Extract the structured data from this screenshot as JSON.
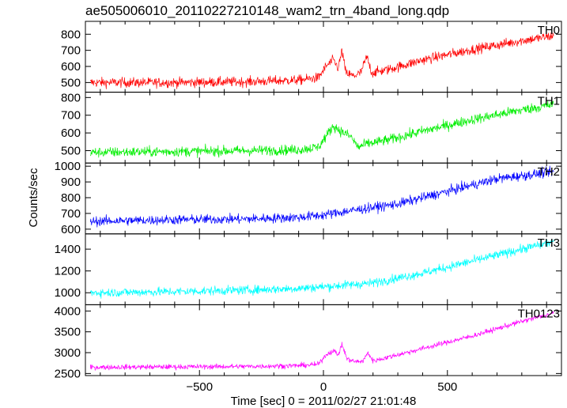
{
  "chart_data": {
    "type": "line",
    "title": "ae505006010_20110227210148_wam2_trn_4band_long.qdp",
    "xlabel": "Time [sec] 0 = 2011/02/27 21:01:48",
    "ylabel": "Counts/sec",
    "xlim": [
      -960,
      960
    ],
    "x_ticks": [
      -500,
      0,
      500
    ],
    "x_tick_labels": [
      "−500",
      "0",
      "500"
    ],
    "legend": "none",
    "grid": false,
    "series": [
      {
        "name": "TH0",
        "color": "#ff0000",
        "ylim": [
          440,
          880
        ],
        "y_ticks": [
          500,
          600,
          700,
          800
        ],
        "noise": 30,
        "profile": [
          [
            -940,
            500
          ],
          [
            -600,
            500
          ],
          [
            -300,
            505
          ],
          [
            -100,
            515
          ],
          [
            -20,
            530
          ],
          [
            10,
            600
          ],
          [
            40,
            640
          ],
          [
            60,
            590
          ],
          [
            75,
            700
          ],
          [
            90,
            560
          ],
          [
            120,
            540
          ],
          [
            150,
            560
          ],
          [
            175,
            660
          ],
          [
            195,
            560
          ],
          [
            260,
            580
          ],
          [
            400,
            640
          ],
          [
            600,
            705
          ],
          [
            800,
            760
          ],
          [
            930,
            790
          ]
        ]
      },
      {
        "name": "TH1",
        "color": "#00ee00",
        "ylim": [
          430,
          830
        ],
        "y_ticks": [
          500,
          600,
          700,
          800
        ],
        "noise": 28,
        "profile": [
          [
            -940,
            490
          ],
          [
            -600,
            495
          ],
          [
            -300,
            500
          ],
          [
            -100,
            505
          ],
          [
            -20,
            520
          ],
          [
            10,
            580
          ],
          [
            40,
            640
          ],
          [
            70,
            610
          ],
          [
            110,
            580
          ],
          [
            140,
            520
          ],
          [
            180,
            540
          ],
          [
            260,
            560
          ],
          [
            400,
            610
          ],
          [
            600,
            675
          ],
          [
            800,
            730
          ],
          [
            930,
            760
          ]
        ]
      },
      {
        "name": "TH2",
        "color": "#0000ff",
        "ylim": [
          570,
          1020
        ],
        "y_ticks": [
          600,
          700,
          800,
          900,
          1000
        ],
        "noise": 30,
        "profile": [
          [
            -940,
            650
          ],
          [
            -600,
            660
          ],
          [
            -300,
            665
          ],
          [
            -100,
            675
          ],
          [
            0,
            690
          ],
          [
            100,
            715
          ],
          [
            300,
            760
          ],
          [
            500,
            840
          ],
          [
            700,
            920
          ],
          [
            930,
            965
          ]
        ]
      },
      {
        "name": "TH3",
        "color": "#00ffff",
        "ylim": [
          890,
          1540
        ],
        "y_ticks": [
          1000,
          1200,
          1400
        ],
        "noise": 40,
        "profile": [
          [
            -940,
            1000
          ],
          [
            -600,
            1010
          ],
          [
            -300,
            1025
          ],
          [
            -100,
            1040
          ],
          [
            0,
            1055
          ],
          [
            200,
            1090
          ],
          [
            400,
            1180
          ],
          [
            600,
            1290
          ],
          [
            800,
            1400
          ],
          [
            930,
            1470
          ]
        ]
      },
      {
        "name": "TH0123",
        "color": "#ff00ff",
        "ylim": [
          2450,
          4150
        ],
        "y_ticks": [
          2500,
          3000,
          3500,
          4000
        ],
        "noise": 60,
        "profile": [
          [
            -940,
            2650
          ],
          [
            -600,
            2660
          ],
          [
            -300,
            2670
          ],
          [
            -100,
            2690
          ],
          [
            -20,
            2720
          ],
          [
            10,
            2950
          ],
          [
            40,
            3050
          ],
          [
            60,
            2950
          ],
          [
            75,
            3200
          ],
          [
            95,
            2850
          ],
          [
            130,
            2780
          ],
          [
            160,
            2800
          ],
          [
            180,
            3000
          ],
          [
            200,
            2800
          ],
          [
            300,
            2950
          ],
          [
            400,
            3100
          ],
          [
            600,
            3400
          ],
          [
            800,
            3750
          ],
          [
            930,
            3950
          ]
        ]
      }
    ]
  }
}
